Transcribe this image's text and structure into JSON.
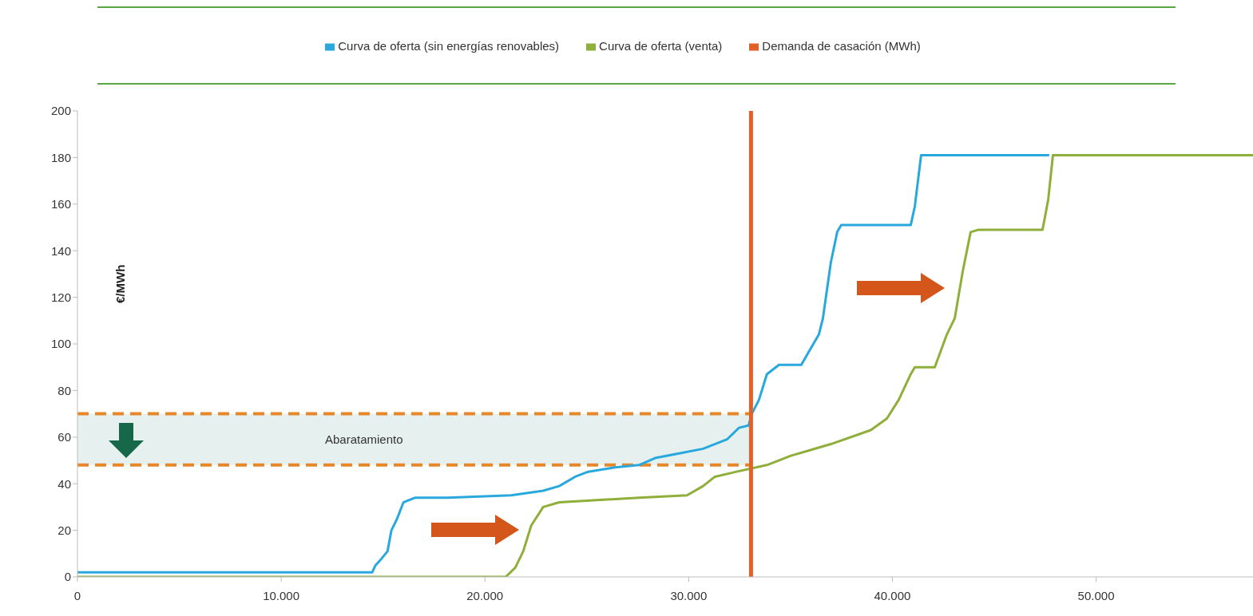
{
  "chart_data": {
    "type": "line",
    "ylabel": "€/MWh",
    "legend": "top",
    "marker": "none",
    "grid": false,
    "xlim": [
      0,
      57700
    ],
    "xticks": [
      0,
      {
        "value": 10000,
        "label": "10.000"
      },
      {
        "value": 20000,
        "label": "20.000"
      },
      {
        "value": 30000,
        "label": "30.000"
      },
      {
        "value": 40000,
        "label": "40.000"
      },
      {
        "value": 50000,
        "label": "50.000"
      }
    ],
    "ylim": [
      0,
      200
    ],
    "yticks": [
      0,
      20,
      40,
      60,
      80,
      100,
      120,
      140,
      160,
      180,
      200
    ],
    "series": [
      {
        "name": "Curva de oferta (sin energías renovables)",
        "color": "#29a8dd",
        "x": [
          0,
          14470,
          14630,
          14940,
          15220,
          15410,
          15690,
          16000,
          16590,
          18160,
          21290,
          22860,
          23650,
          24430,
          25020,
          26390,
          27570,
          28350,
          29530,
          30710,
          31880,
          32470,
          32940,
          33100,
          33450,
          33840,
          34430,
          35530,
          35920,
          36390,
          36590,
          36980,
          37290,
          37490,
          40900,
          41100,
          41410,
          47700
        ],
        "values": [
          2,
          2,
          5,
          8,
          11,
          20,
          25,
          32,
          34,
          34,
          35,
          37,
          39,
          43,
          45,
          47,
          48,
          51,
          53,
          55,
          59,
          64,
          65,
          70,
          76,
          87,
          91,
          91,
          97,
          104,
          111,
          135,
          148,
          151,
          151,
          159,
          181,
          181
        ]
      },
      {
        "name": "Curva de oferta (venta)",
        "color": "#8fae3a",
        "x": [
          0,
          21020,
          21490,
          21880,
          22270,
          22860,
          23650,
          27570,
          29920,
          30710,
          31290,
          32270,
          33840,
          35020,
          36980,
          38940,
          39730,
          40310,
          40900,
          41100,
          42080,
          42670,
          43060,
          43450,
          43840,
          44240,
          47370,
          47650,
          47880,
          57700
        ],
        "values": [
          0,
          0,
          4,
          11,
          22,
          30,
          32,
          34,
          35,
          39,
          43,
          45,
          48,
          52,
          57,
          63,
          68,
          76,
          87,
          90,
          90,
          104,
          111,
          131,
          148,
          149,
          149,
          162,
          181,
          181
        ]
      },
      {
        "name": "Demanda de casación (MWh)",
        "color": "#e2612a",
        "x": [
          33060,
          33060
        ],
        "values": [
          0,
          200
        ]
      }
    ],
    "ref_lines": [
      {
        "axis": "y",
        "value": 70,
        "color": "#e8872a",
        "line_style": "dashed"
      },
      {
        "axis": "y",
        "value": 48,
        "color": "#e8872a",
        "line_style": "dashed"
      }
    ],
    "bands": [
      {
        "axis": "y",
        "from": 48,
        "to": 70,
        "label": "Abaratamiento",
        "color": "#e6f1ef"
      }
    ]
  }
}
